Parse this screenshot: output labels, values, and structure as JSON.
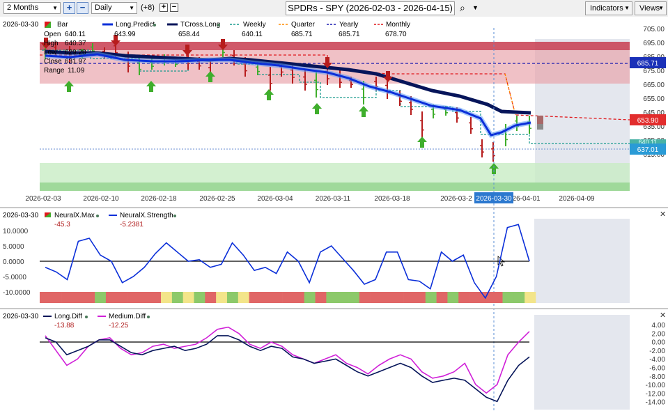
{
  "toolbar": {
    "period": "2 Months",
    "interval": "Daily",
    "offset": "(+8)",
    "title": "SPDRs - SPY (2026-02-03 - 2026-04-15)",
    "indicators_label": "Indicators",
    "views_label": "Views"
  },
  "main_panel": {
    "date": "2026-03-30",
    "legend": {
      "bar": "Bar",
      "long_predict": "Long.Predict",
      "long_predict_val": "643.99",
      "tcross": "TCross.Long",
      "tcross_val": "658.44",
      "weekly": "Weekly",
      "weekly_val": "640.11",
      "quarter": "Quarter",
      "quarter_val": "685.71",
      "yearly": "Yearly",
      "yearly_val": "685.71",
      "monthly": "Monthly",
      "monthly_val": "678.70"
    },
    "ohlc": {
      "open_label": "Open",
      "open": "640.11",
      "high_label": "High",
      "high": "640.37",
      "low_label": "Low",
      "low": "629.28",
      "close_label": "Close",
      "close": "631.97",
      "range_label": "Range",
      "range": "11.09"
    },
    "y_ticks": [
      "705.00",
      "695.00",
      "685.00",
      "675.00",
      "665.00",
      "655.00",
      "645.00",
      "635.00",
      "625.00",
      "615.00"
    ],
    "price_labels": {
      "yearly": "685.71",
      "monthly": "653.90",
      "hidden": "640.11",
      "weekly": "637.01"
    },
    "x_ticks": [
      "2026-02-03",
      "2026-02-10",
      "2026-02-18",
      "2026-02-25",
      "2026-03-04",
      "2026-03-11",
      "2026-03-18",
      "2026-03-2",
      "2026-04-01",
      "2026-04-09"
    ],
    "cursor_date": "2026-03-30"
  },
  "neural_panel": {
    "date": "2026-03-30",
    "max_label": "NeuralX.Max",
    "max_val": "-45.3",
    "strength_label": "NeuralX.Strength",
    "strength_val": "-5.2381",
    "y_ticks": [
      "10.0000",
      "5.0000",
      "0.0000",
      "-5.0000",
      "-10.0000"
    ],
    "strength_series": [
      -2,
      -3.5,
      -6,
      6.5,
      7.5,
      2,
      0,
      -7,
      -5,
      -2,
      2.5,
      6,
      3,
      0,
      0.5,
      -2,
      -1,
      6,
      2,
      -3,
      -2,
      -4,
      3,
      0,
      -7,
      3,
      5,
      1,
      -3,
      -7.5,
      -6,
      3,
      3,
      -6,
      -6.5,
      -9,
      3,
      0,
      2,
      -7,
      -12,
      -5,
      11,
      12,
      0
    ],
    "max_colors": [
      "#e06666",
      "#e06666",
      "#e06666",
      "#e06666",
      "#e06666",
      "#8cc96a",
      "#e06666",
      "#e06666",
      "#e06666",
      "#e06666",
      "#e06666",
      "#f3e58a",
      "#8cc96a",
      "#f3e58a",
      "#8cc96a",
      "#e06666",
      "#f3e58a",
      "#8cc96a",
      "#f3e58a",
      "#e06666",
      "#e06666",
      "#e06666",
      "#e06666",
      "#e06666",
      "#8cc96a",
      "#e06666",
      "#8cc96a",
      "#8cc96a",
      "#8cc96a",
      "#e06666",
      "#e06666",
      "#e06666",
      "#e06666",
      "#e06666",
      "#e06666",
      "#8cc96a",
      "#e06666",
      "#8cc96a",
      "#e06666",
      "#e06666",
      "#e06666",
      "#e06666",
      "#8cc96a",
      "#8cc96a",
      "#f3e58a"
    ]
  },
  "diff_panel": {
    "date": "2026-03-30",
    "long_label": "Long.Diff",
    "long_val": "-13.88",
    "medium_label": "Medium.Diff",
    "medium_val": "-12.25",
    "y_ticks": [
      "4.00",
      "2.00",
      "0.00",
      "-2.00",
      "-4.00",
      "-6.00",
      "-8.00",
      "-10.00",
      "-12.00",
      "-14.00"
    ],
    "long_series": [
      1,
      0,
      -3,
      -2,
      -1,
      0.5,
      0.5,
      -1,
      -2.5,
      -3,
      -2,
      -1.5,
      -1,
      -2,
      -1.5,
      -0.5,
      1.5,
      1.5,
      0.5,
      -1,
      -2,
      -1,
      -1.5,
      -3.5,
      -4,
      -5,
      -4.5,
      -4,
      -5.5,
      -7,
      -8,
      -7,
      -6,
      -5,
      -6,
      -8,
      -9.5,
      -9,
      -8.5,
      -9,
      -11,
      -13,
      -14,
      -9,
      -5.5,
      -3.5
    ],
    "medium_series": [
      1.5,
      -2,
      -5.5,
      -4,
      -1,
      0.5,
      1,
      -1.5,
      -3,
      -2.5,
      -1,
      -0.5,
      -1.5,
      -1,
      -0.5,
      1,
      3,
      3.5,
      2,
      -0.5,
      -1.5,
      0,
      -1,
      -3,
      -4,
      -5,
      -4,
      -3,
      -5,
      -6,
      -7.5,
      -5.5,
      -4,
      -3,
      -4,
      -7,
      -8.5,
      -8,
      -7,
      -5,
      -10,
      -12,
      -10,
      -3,
      0,
      2.5
    ]
  },
  "colors": {
    "long_predict": "#0b2fd9",
    "tcross": "#06155a",
    "weekly": "#1a9b8e",
    "quarter": "#ff8c00",
    "yearly": "#1a1ab0",
    "monthly": "#e0181c",
    "up": "#3fae2c",
    "down": "#b71c1c"
  }
}
